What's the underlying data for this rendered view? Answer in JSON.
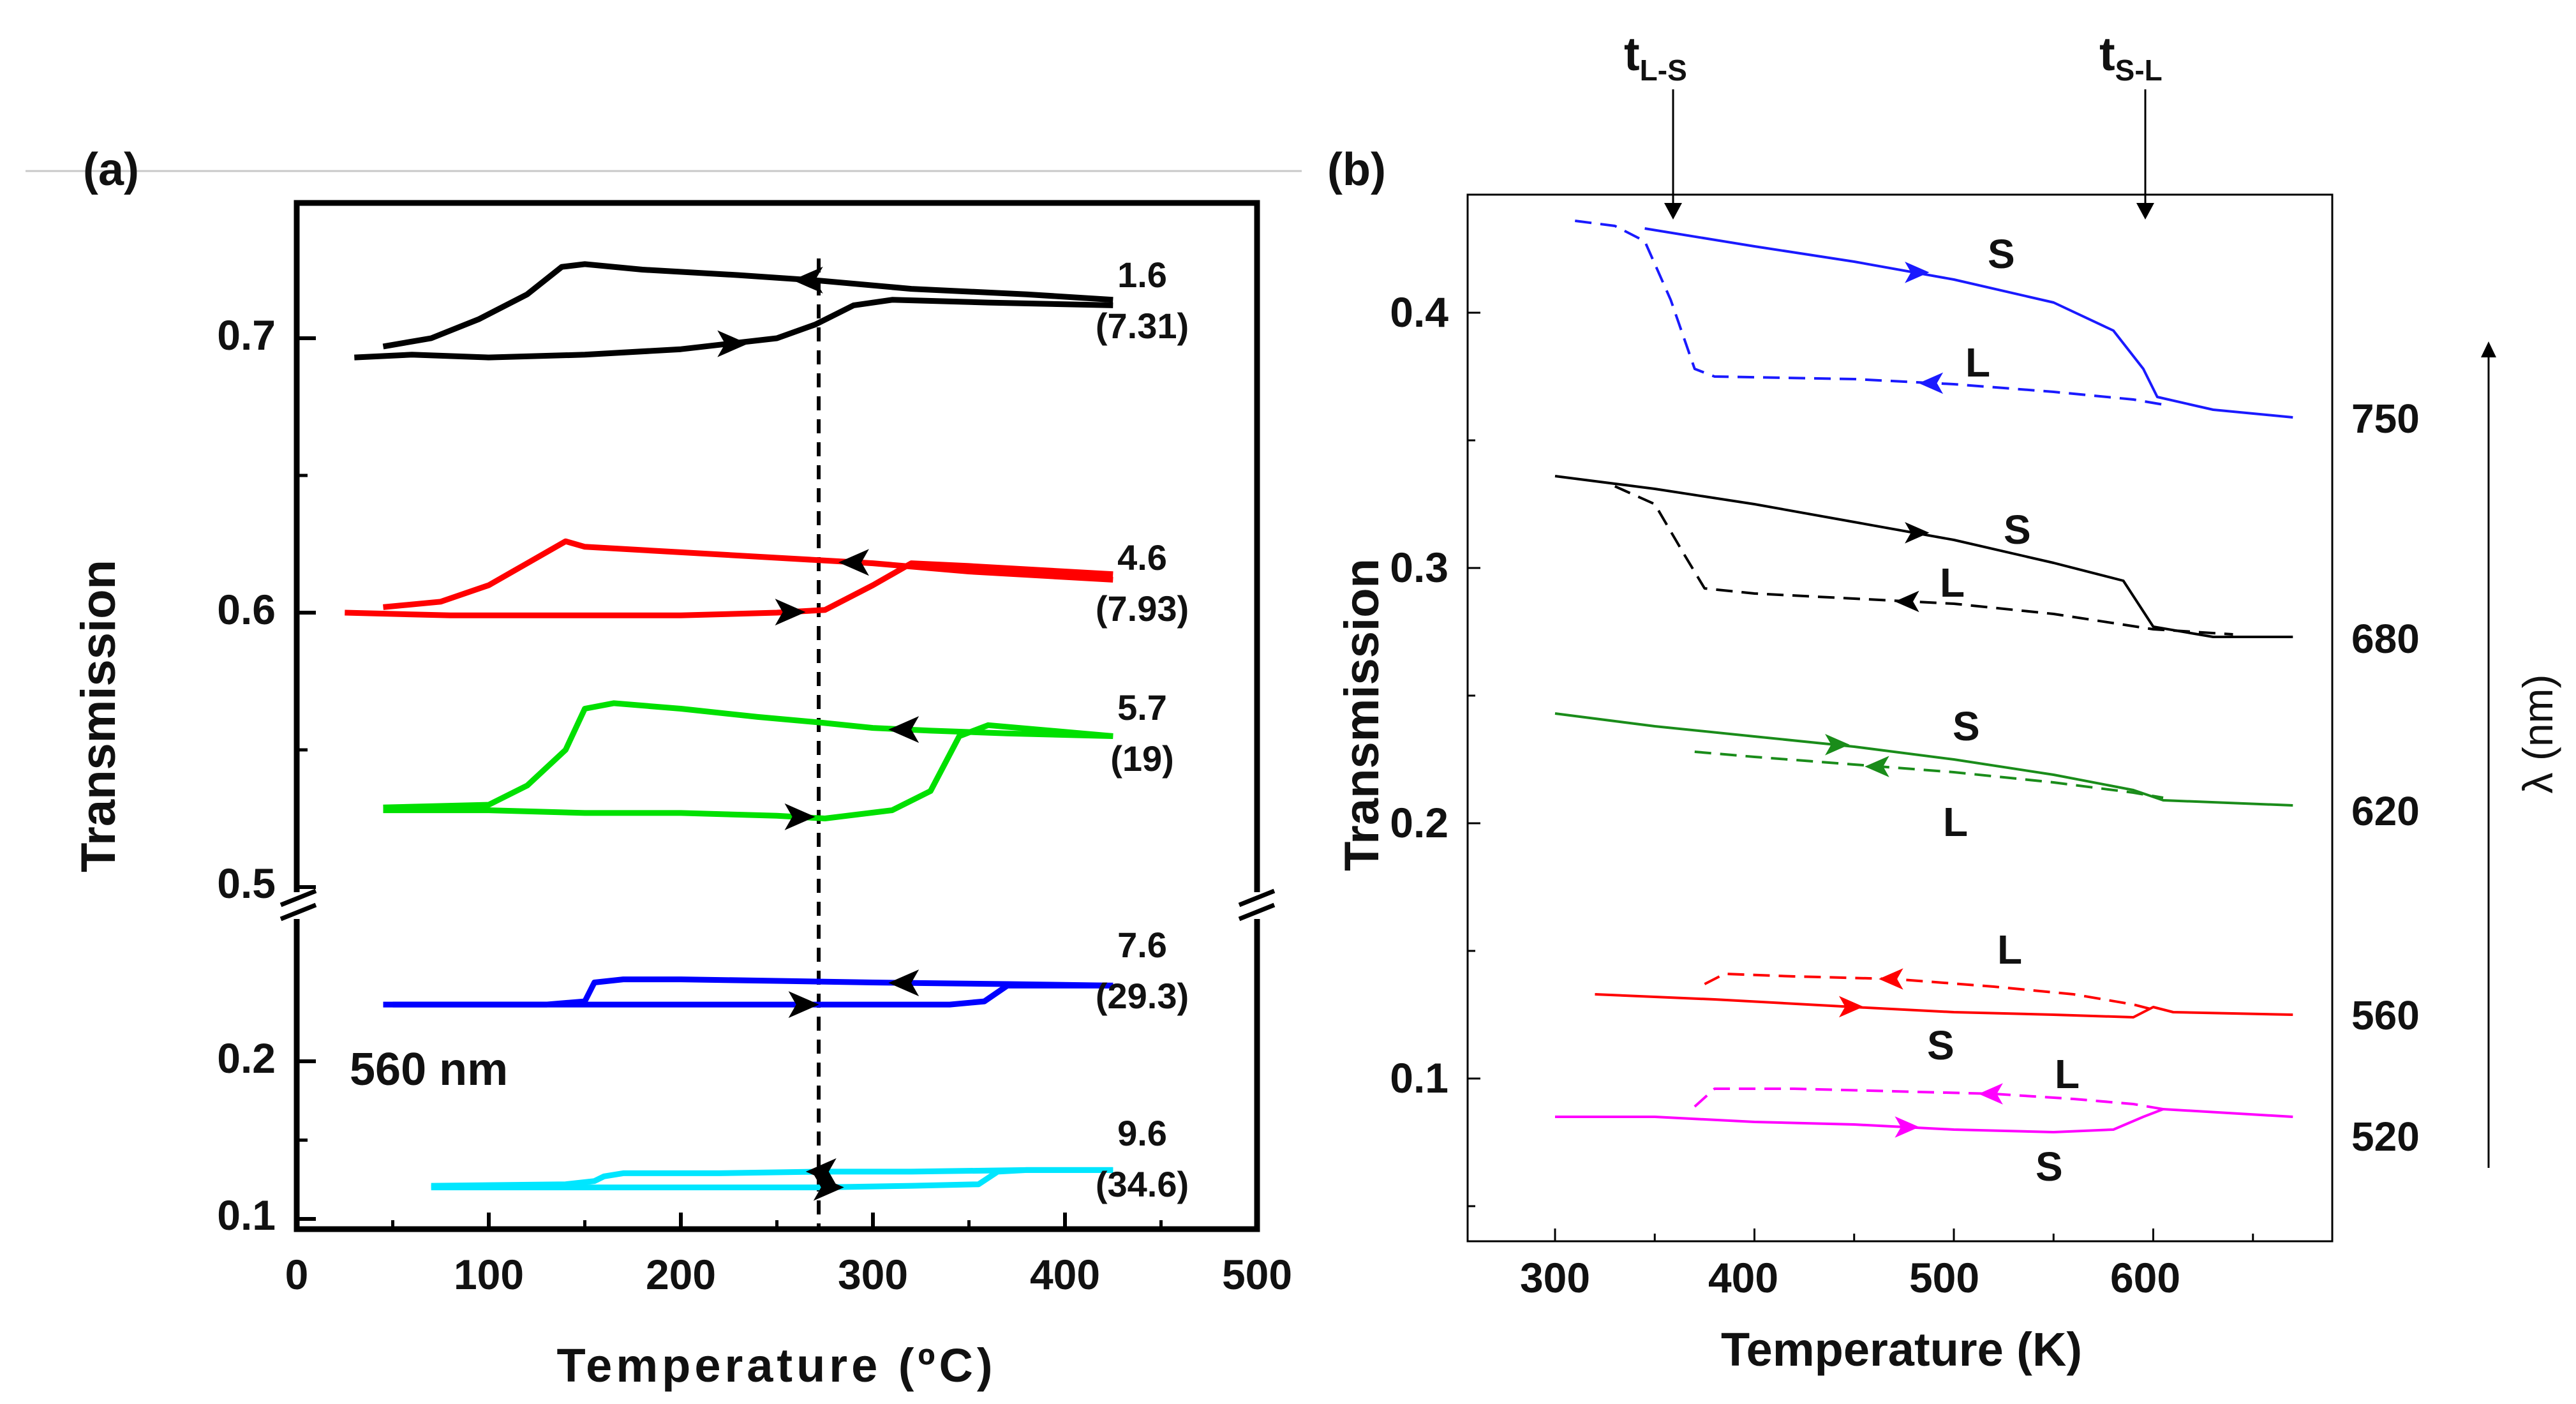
{
  "chart_data": [
    {
      "panel": "(a)",
      "type": "line",
      "xlabel": "Temperature (ºC)",
      "ylabel": "Transmission",
      "xlim": [
        0,
        500
      ],
      "x_ticks": [
        "0",
        "100",
        "200",
        "300",
        "400",
        "500"
      ],
      "y_ticks": [
        "0.1",
        "0.2",
        "0.5",
        "0.6",
        "0.7"
      ],
      "broken_axis": "y axis break between 0.2 and 0.5",
      "annotation": "560 nm",
      "reference_line_x": 272,
      "series": [
        {
          "label_top": "1.6",
          "label_bottom": "(7.31)",
          "color": "#000000",
          "heating": [
            [
              30,
              0.693
            ],
            [
              60,
              0.694
            ],
            [
              100,
              0.693
            ],
            [
              150,
              0.694
            ],
            [
              200,
              0.696
            ],
            [
              250,
              0.7
            ],
            [
              270,
              0.705
            ],
            [
              290,
              0.712
            ],
            [
              310,
              0.714
            ],
            [
              360,
              0.713
            ],
            [
              425,
              0.712
            ]
          ],
          "cooling": [
            [
              425,
              0.714
            ],
            [
              380,
              0.716
            ],
            [
              320,
              0.718
            ],
            [
              272,
              0.721
            ],
            [
              230,
              0.723
            ],
            [
              180,
              0.725
            ],
            [
              150,
              0.727
            ],
            [
              138,
              0.726
            ],
            [
              120,
              0.716
            ],
            [
              95,
              0.707
            ],
            [
              70,
              0.7
            ],
            [
              45,
              0.697
            ]
          ]
        },
        {
          "label_top": "4.6",
          "label_bottom": "(7.93)",
          "color": "#ff0000",
          "heating": [
            [
              25,
              0.6
            ],
            [
              80,
              0.599
            ],
            [
              150,
              0.599
            ],
            [
              200,
              0.599
            ],
            [
              250,
              0.6
            ],
            [
              275,
              0.601
            ],
            [
              300,
              0.61
            ],
            [
              320,
              0.618
            ],
            [
              350,
              0.617
            ],
            [
              425,
              0.614
            ]
          ],
          "cooling": [
            [
              425,
              0.612
            ],
            [
              350,
              0.615
            ],
            [
              300,
              0.618
            ],
            [
              250,
              0.62
            ],
            [
              200,
              0.622
            ],
            [
              150,
              0.624
            ],
            [
              140,
              0.626
            ],
            [
              120,
              0.618
            ],
            [
              100,
              0.61
            ],
            [
              75,
              0.604
            ],
            [
              45,
              0.602
            ]
          ]
        },
        {
          "label_top": "5.7",
          "label_bottom": "(19)",
          "color": "#00e000",
          "heating": [
            [
              45,
              0.528
            ],
            [
              100,
              0.528
            ],
            [
              150,
              0.527
            ],
            [
              200,
              0.527
            ],
            [
              250,
              0.526
            ],
            [
              275,
              0.525
            ],
            [
              310,
              0.528
            ],
            [
              330,
              0.535
            ],
            [
              345,
              0.555
            ],
            [
              360,
              0.559
            ],
            [
              425,
              0.555
            ]
          ],
          "cooling": [
            [
              425,
              0.555
            ],
            [
              370,
              0.556
            ],
            [
              330,
              0.557
            ],
            [
              300,
              0.558
            ],
            [
              272,
              0.56
            ],
            [
              240,
              0.562
            ],
            [
              200,
              0.565
            ],
            [
              165,
              0.567
            ],
            [
              150,
              0.565
            ],
            [
              140,
              0.55
            ],
            [
              120,
              0.537
            ],
            [
              100,
              0.53
            ],
            [
              45,
              0.529
            ]
          ]
        },
        {
          "label_top": "7.6",
          "label_bottom": "(29.3)",
          "color": "#0000ff",
          "heating": [
            [
              45,
              0.236
            ],
            [
              100,
              0.236
            ],
            [
              150,
              0.236
            ],
            [
              200,
              0.236
            ],
            [
              250,
              0.236
            ],
            [
              300,
              0.236
            ],
            [
              340,
              0.236
            ],
            [
              358,
              0.238
            ],
            [
              370,
              0.248
            ],
            [
              425,
              0.248
            ]
          ],
          "cooling": [
            [
              425,
              0.248
            ],
            [
              370,
              0.249
            ],
            [
              300,
              0.25
            ],
            [
              250,
              0.251
            ],
            [
              200,
              0.252
            ],
            [
              170,
              0.252
            ],
            [
              155,
              0.25
            ],
            [
              150,
              0.238
            ],
            [
              130,
              0.236
            ],
            [
              50,
              0.236
            ]
          ]
        },
        {
          "label_top": "9.6",
          "label_bottom": "(34.6)",
          "color": "#00e6ff",
          "heating": [
            [
              70,
              0.12
            ],
            [
              120,
              0.12
            ],
            [
              170,
              0.12
            ],
            [
              220,
              0.12
            ],
            [
              272,
              0.12
            ],
            [
              320,
              0.121
            ],
            [
              355,
              0.122
            ],
            [
              365,
              0.13
            ],
            [
              380,
              0.131
            ],
            [
              425,
              0.131
            ]
          ],
          "cooling": [
            [
              425,
              0.131
            ],
            [
              380,
              0.131
            ],
            [
              320,
              0.13
            ],
            [
              272,
              0.13
            ],
            [
              220,
              0.129
            ],
            [
              170,
              0.129
            ],
            [
              160,
              0.127
            ],
            [
              155,
              0.124
            ],
            [
              140,
              0.122
            ],
            [
              70,
              0.121
            ]
          ]
        }
      ]
    },
    {
      "panel": "(b)",
      "type": "line",
      "xlabel": "Temperature (K)",
      "ylabel": "Transmission",
      "right_axis_label": "λ (nm)",
      "xlim": [
        280,
        670
      ],
      "ylim": [
        0.05,
        0.45
      ],
      "x_ticks": [
        "300",
        "400",
        "500",
        "600"
      ],
      "y_ticks": [
        "0.1",
        "0.2",
        "0.3",
        "0.4"
      ],
      "markers": [
        {
          "main": "t",
          "sub": "L-S",
          "x": 365
        },
        {
          "main": "t",
          "sub": "S-L",
          "x": 600
        }
      ],
      "series": [
        {
          "wavelength": "750",
          "color": "#1a1aff",
          "solid": [
            [
              345,
              0.433
            ],
            [
              400,
              0.426
            ],
            [
              450,
              0.42
            ],
            [
              500,
              0.413
            ],
            [
              550,
              0.404
            ],
            [
              580,
              0.393
            ],
            [
              595,
              0.378
            ],
            [
              602,
              0.367
            ],
            [
              630,
              0.362
            ],
            [
              670,
              0.359
            ]
          ],
          "dashed": [
            [
              310,
              0.436
            ],
            [
              330,
              0.434
            ],
            [
              345,
              0.428
            ],
            [
              358,
              0.405
            ],
            [
              370,
              0.378
            ],
            [
              380,
              0.375
            ],
            [
              450,
              0.374
            ],
            [
              500,
              0.372
            ],
            [
              550,
              0.369
            ],
            [
              590,
              0.366
            ],
            [
              605,
              0.364
            ]
          ],
          "solid_label": "S",
          "dashed_label": "L"
        },
        {
          "wavelength": "680",
          "color": "#000000",
          "solid": [
            [
              300,
              0.336
            ],
            [
              350,
              0.331
            ],
            [
              400,
              0.325
            ],
            [
              450,
              0.318
            ],
            [
              500,
              0.311
            ],
            [
              550,
              0.302
            ],
            [
              585,
              0.295
            ],
            [
              600,
              0.277
            ],
            [
              630,
              0.273
            ],
            [
              670,
              0.273
            ]
          ],
          "dashed": [
            [
              330,
              0.332
            ],
            [
              350,
              0.325
            ],
            [
              365,
              0.305
            ],
            [
              375,
              0.292
            ],
            [
              400,
              0.29
            ],
            [
              450,
              0.288
            ],
            [
              500,
              0.286
            ],
            [
              550,
              0.282
            ],
            [
              600,
              0.276
            ],
            [
              640,
              0.274
            ]
          ],
          "solid_label": "S",
          "dashed_label": "L"
        },
        {
          "wavelength": "620",
          "color": "#1a8c1a",
          "solid": [
            [
              300,
              0.243
            ],
            [
              350,
              0.238
            ],
            [
              400,
              0.234
            ],
            [
              450,
              0.23
            ],
            [
              500,
              0.225
            ],
            [
              550,
              0.219
            ],
            [
              590,
              0.213
            ],
            [
              605,
              0.209
            ],
            [
              670,
              0.207
            ]
          ],
          "dashed": [
            [
              370,
              0.228
            ],
            [
              400,
              0.226
            ],
            [
              450,
              0.223
            ],
            [
              500,
              0.22
            ],
            [
              550,
              0.216
            ],
            [
              590,
              0.212
            ],
            [
              605,
              0.21
            ]
          ],
          "solid_label": "S",
          "dashed_label": "L"
        },
        {
          "wavelength": "560",
          "color": "#ff0000",
          "solid": [
            [
              320,
              0.133
            ],
            [
              380,
              0.131
            ],
            [
              450,
              0.128
            ],
            [
              500,
              0.126
            ],
            [
              550,
              0.125
            ],
            [
              590,
              0.124
            ],
            [
              600,
              0.128
            ],
            [
              610,
              0.126
            ],
            [
              670,
              0.125
            ]
          ],
          "dashed": [
            [
              375,
              0.137
            ],
            [
              385,
              0.141
            ],
            [
              420,
              0.14
            ],
            [
              470,
              0.139
            ],
            [
              520,
              0.136
            ],
            [
              560,
              0.133
            ],
            [
              590,
              0.129
            ],
            [
              600,
              0.127
            ]
          ],
          "solid_label": "S",
          "dashed_label": "L"
        },
        {
          "wavelength": "520",
          "color": "#ff00ff",
          "solid": [
            [
              300,
              0.085
            ],
            [
              350,
              0.085
            ],
            [
              400,
              0.083
            ],
            [
              450,
              0.082
            ],
            [
              500,
              0.08
            ],
            [
              550,
              0.079
            ],
            [
              580,
              0.08
            ],
            [
              595,
              0.085
            ],
            [
              605,
              0.088
            ],
            [
              670,
              0.085
            ]
          ],
          "dashed": [
            [
              370,
              0.089
            ],
            [
              380,
              0.096
            ],
            [
              420,
              0.096
            ],
            [
              470,
              0.095
            ],
            [
              520,
              0.094
            ],
            [
              560,
              0.092
            ],
            [
              590,
              0.09
            ],
            [
              605,
              0.088
            ]
          ],
          "solid_label": "S",
          "dashed_label": "L"
        }
      ]
    }
  ]
}
